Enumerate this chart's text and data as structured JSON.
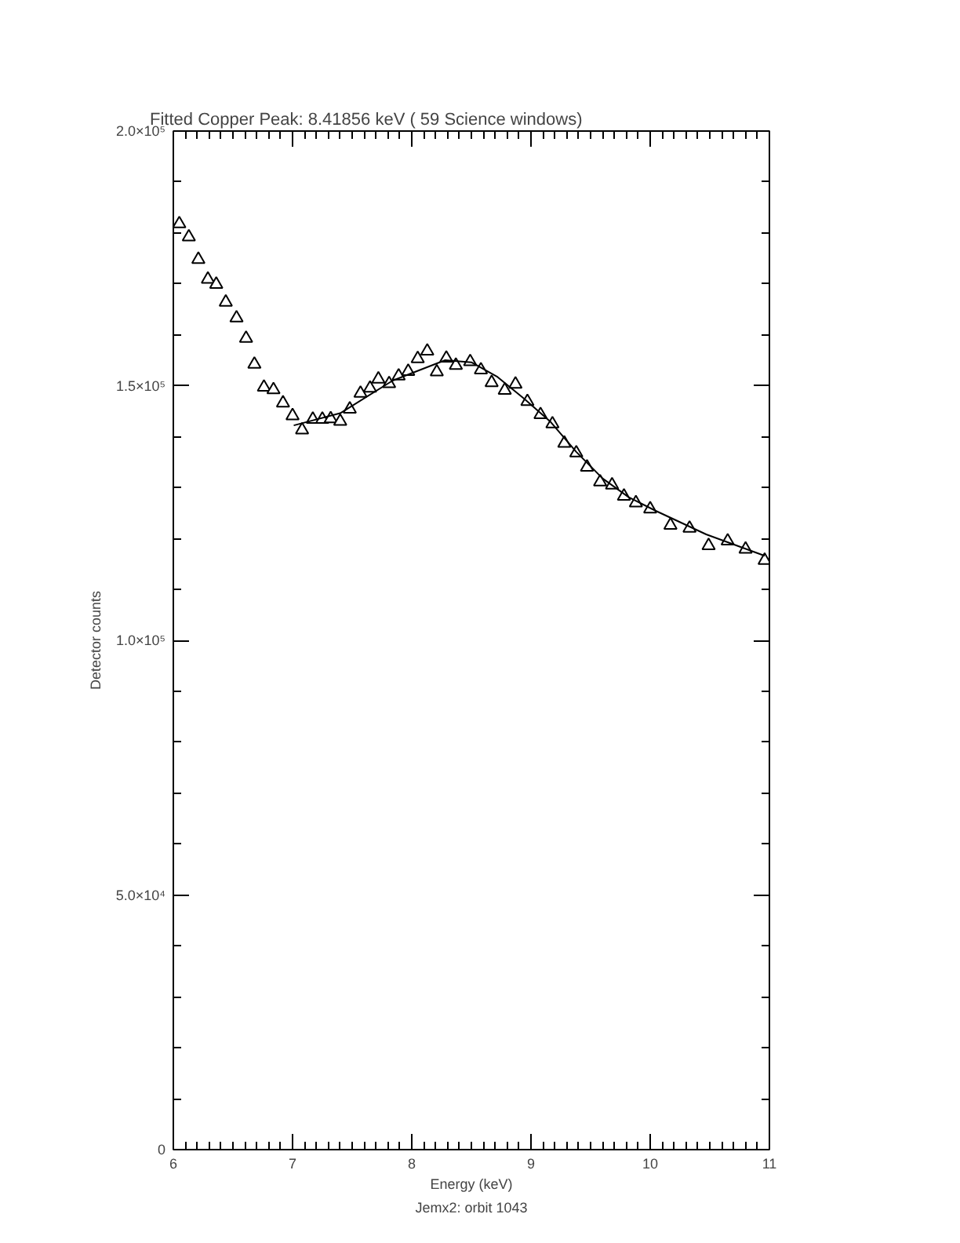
{
  "chart_data": {
    "type": "scatter",
    "title": "Fitted Copper Peak:       8.41856 keV (      59 Science windows)",
    "xlabel": "Energy (keV)",
    "ylabel": "Detector counts",
    "annotations": [
      "Jemx2: orbit 1043"
    ],
    "xlim": [
      6,
      11
    ],
    "ylim": [
      0,
      200000
    ],
    "xticks": [
      6,
      7,
      8,
      9,
      10,
      11,
      {
        "value": 6.1,
        "label": null
      },
      {
        "value": 6.2,
        "label": null
      },
      {
        "value": 6.3,
        "label": null
      },
      {
        "value": 6.4,
        "label": null
      },
      {
        "value": 6.5,
        "label": null
      },
      {
        "value": 6.6,
        "label": null
      },
      {
        "value": 6.7,
        "label": null
      },
      {
        "value": 6.8,
        "label": null
      },
      {
        "value": 6.9,
        "label": null
      },
      {
        "value": 7.1,
        "label": null
      },
      {
        "value": 7.2,
        "label": null
      },
      {
        "value": 7.3,
        "label": null
      },
      {
        "value": 7.4,
        "label": null
      },
      {
        "value": 7.5,
        "label": null
      },
      {
        "value": 7.6,
        "label": null
      },
      {
        "value": 7.7,
        "label": null
      },
      {
        "value": 7.8,
        "label": null
      },
      {
        "value": 7.9,
        "label": null
      },
      {
        "value": 8.1,
        "label": null
      },
      {
        "value": 8.2,
        "label": null
      },
      {
        "value": 8.3,
        "label": null
      },
      {
        "value": 8.4,
        "label": null
      },
      {
        "value": 8.5,
        "label": null
      },
      {
        "value": 8.6,
        "label": null
      },
      {
        "value": 8.7,
        "label": null
      },
      {
        "value": 8.8,
        "label": null
      },
      {
        "value": 8.9,
        "label": null
      },
      {
        "value": 9.1,
        "label": null
      },
      {
        "value": 9.2,
        "label": null
      },
      {
        "value": 9.3,
        "label": null
      },
      {
        "value": 9.4,
        "label": null
      },
      {
        "value": 9.5,
        "label": null
      },
      {
        "value": 9.6,
        "label": null
      },
      {
        "value": 9.7,
        "label": null
      },
      {
        "value": 9.8,
        "label": null
      },
      {
        "value": 9.9,
        "label": null
      },
      {
        "value": 10.1,
        "label": null
      },
      {
        "value": 10.2,
        "label": null
      },
      {
        "value": 10.3,
        "label": null
      },
      {
        "value": 10.4,
        "label": null
      },
      {
        "value": 10.5,
        "label": null
      },
      {
        "value": 10.6,
        "label": null
      },
      {
        "value": 10.7,
        "label": null
      },
      {
        "value": 10.8,
        "label": null
      },
      {
        "value": 10.9,
        "label": null
      }
    ],
    "yticks": [
      0,
      {
        "value": 50000,
        "label": "5.0×10⁴"
      },
      {
        "value": 100000,
        "label": "1.0×10⁵"
      },
      {
        "value": 150000,
        "label": "1.5×10⁵"
      },
      {
        "value": 200000,
        "label": "2.0×10⁵"
      },
      {
        "value": 10000,
        "label": null
      },
      {
        "value": 20000,
        "label": null
      },
      {
        "value": 30000,
        "label": null
      },
      {
        "value": 40000,
        "label": null
      },
      {
        "value": 60000,
        "label": null
      },
      {
        "value": 70000,
        "label": null
      },
      {
        "value": 80000,
        "label": null
      },
      {
        "value": 90000,
        "label": null
      },
      {
        "value": 110000,
        "label": null
      },
      {
        "value": 120000,
        "label": null
      },
      {
        "value": 130000,
        "label": null
      },
      {
        "value": 140000,
        "label": null
      },
      {
        "value": 160000,
        "label": null
      },
      {
        "value": 170000,
        "label": null
      },
      {
        "value": 180000,
        "label": null
      },
      {
        "value": 190000,
        "label": null
      }
    ],
    "grid": false,
    "series": [
      {
        "marker": "triangle",
        "color": "#000000",
        "x": [
          6.05,
          6.13,
          6.21,
          6.29,
          6.36,
          6.44,
          6.53,
          6.61,
          6.68,
          6.76,
          6.84,
          6.92,
          7.0,
          7.08,
          7.17,
          7.25,
          7.32,
          7.4,
          7.48,
          7.57,
          7.65,
          7.72,
          7.81,
          7.89,
          7.97,
          8.05,
          8.13,
          8.21,
          8.29,
          8.37,
          8.49,
          8.58,
          8.67,
          8.78,
          8.87,
          8.97,
          9.08,
          9.18,
          9.28,
          9.38,
          9.47,
          9.58,
          9.68,
          9.78,
          9.88,
          10.0,
          10.17,
          10.33,
          10.49,
          10.65,
          10.8,
          10.96
        ],
        "values": [
          181800,
          179200,
          174800,
          170900,
          169900,
          166400,
          163300,
          159300,
          154200,
          149700,
          149200,
          146600,
          144100,
          141300,
          143400,
          143400,
          143500,
          143000,
          145400,
          148500,
          149500,
          151300,
          150400,
          151900,
          152800,
          155300,
          156800,
          152700,
          155400,
          154000,
          154700,
          153100,
          150600,
          149100,
          150300,
          146900,
          144300,
          142500,
          138700,
          136800,
          134000,
          131100,
          130500,
          128300,
          127000,
          125800,
          122600,
          122000,
          118600,
          119500,
          117900,
          115700
        ]
      },
      {
        "type": "line",
        "marker": "none",
        "line_style": "solid",
        "color": "#000000",
        "x": [
          7.01,
          7.4,
          7.84,
          8.28,
          8.5,
          8.72,
          8.94,
          9.16,
          9.38,
          9.6,
          9.82,
          10.04,
          10.47,
          10.96
        ],
        "values": [
          142200,
          144600,
          151000,
          155000,
          154600,
          151700,
          147500,
          143000,
          137000,
          131800,
          128100,
          125500,
          120800,
          116600
        ]
      }
    ]
  }
}
